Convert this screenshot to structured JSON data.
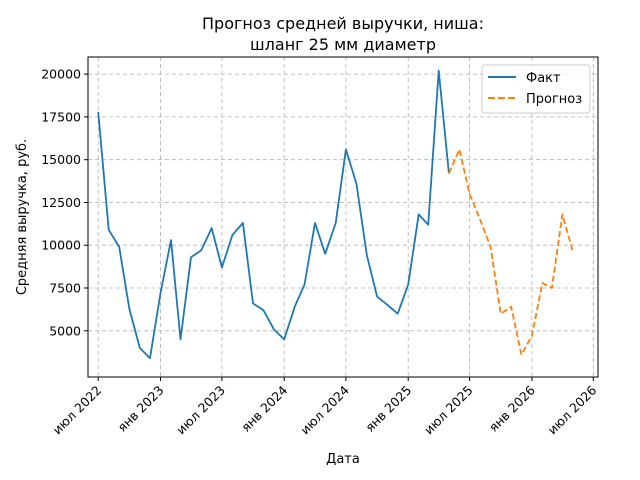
{
  "chart_data": {
    "type": "line",
    "title_lines": [
      "Прогноз средней выручки, ниша:",
      "шланг 25 мм диаметр"
    ],
    "xlabel": "Дата",
    "ylabel": "Средняя выручка, руб.",
    "x_range": [
      "2022-06-01",
      "2026-07-15"
    ],
    "ylim": [
      2300,
      21000
    ],
    "grid": true,
    "legend_position": "top-right",
    "x_ticks": [
      {
        "date": "2022-07-01",
        "label": "июл 2022"
      },
      {
        "date": "2023-01-01",
        "label": "янв 2023"
      },
      {
        "date": "2023-07-01",
        "label": "июл 2023"
      },
      {
        "date": "2024-01-01",
        "label": "янв 2024"
      },
      {
        "date": "2024-07-01",
        "label": "июл 2024"
      },
      {
        "date": "2025-01-01",
        "label": "янв 2025"
      },
      {
        "date": "2025-07-01",
        "label": "июл 2025"
      },
      {
        "date": "2026-01-01",
        "label": "янв 2026"
      },
      {
        "date": "2026-07-01",
        "label": "июл 2026"
      }
    ],
    "y_ticks": [
      {
        "value": 5000,
        "label": "5000"
      },
      {
        "value": 7500,
        "label": "7500"
      },
      {
        "value": 10000,
        "label": "10000"
      },
      {
        "value": 12500,
        "label": "12500"
      },
      {
        "value": 15000,
        "label": "15000"
      },
      {
        "value": 17500,
        "label": "17500"
      },
      {
        "value": 20000,
        "label": "20000"
      }
    ],
    "series": [
      {
        "name": "Факт",
        "color": "#1f77b4",
        "style": "solid",
        "x": [
          "2022-07-01",
          "2022-08-01",
          "2022-09-01",
          "2022-10-01",
          "2022-11-01",
          "2022-12-01",
          "2023-01-01",
          "2023-02-01",
          "2023-03-01",
          "2023-04-01",
          "2023-05-01",
          "2023-06-01",
          "2023-07-01",
          "2023-08-01",
          "2023-09-01",
          "2023-10-01",
          "2023-11-01",
          "2023-12-01",
          "2024-01-01",
          "2024-02-01",
          "2024-03-01",
          "2024-04-01",
          "2024-05-01",
          "2024-06-01",
          "2024-07-01",
          "2024-08-01",
          "2024-09-01",
          "2024-10-01",
          "2024-11-01",
          "2024-12-01",
          "2025-01-01",
          "2025-02-01",
          "2025-03-01",
          "2025-04-01",
          "2025-05-01"
        ],
        "y": [
          17800,
          10900,
          9900,
          6300,
          4000,
          3400,
          7200,
          10300,
          4500,
          9300,
          9700,
          11000,
          8700,
          10600,
          11300,
          6600,
          6200,
          5100,
          4500,
          6400,
          7700,
          11300,
          9500,
          11300,
          15600,
          13600,
          9400,
          7000,
          6500,
          6000,
          7700,
          11800,
          11200,
          20200,
          14200
        ]
      },
      {
        "name": "Прогноз",
        "color": "#ff7f0e",
        "style": "dashed",
        "x": [
          "2025-05-01",
          "2025-06-01",
          "2025-07-01",
          "2025-08-01",
          "2025-09-01",
          "2025-10-01",
          "2025-11-01",
          "2025-12-01",
          "2026-01-01",
          "2026-02-01",
          "2026-03-01",
          "2026-04-01",
          "2026-05-01"
        ],
        "y": [
          14200,
          15600,
          13000,
          11500,
          9900,
          6000,
          6400,
          3600,
          4700,
          7800,
          7500,
          11800,
          9700
        ]
      }
    ]
  }
}
